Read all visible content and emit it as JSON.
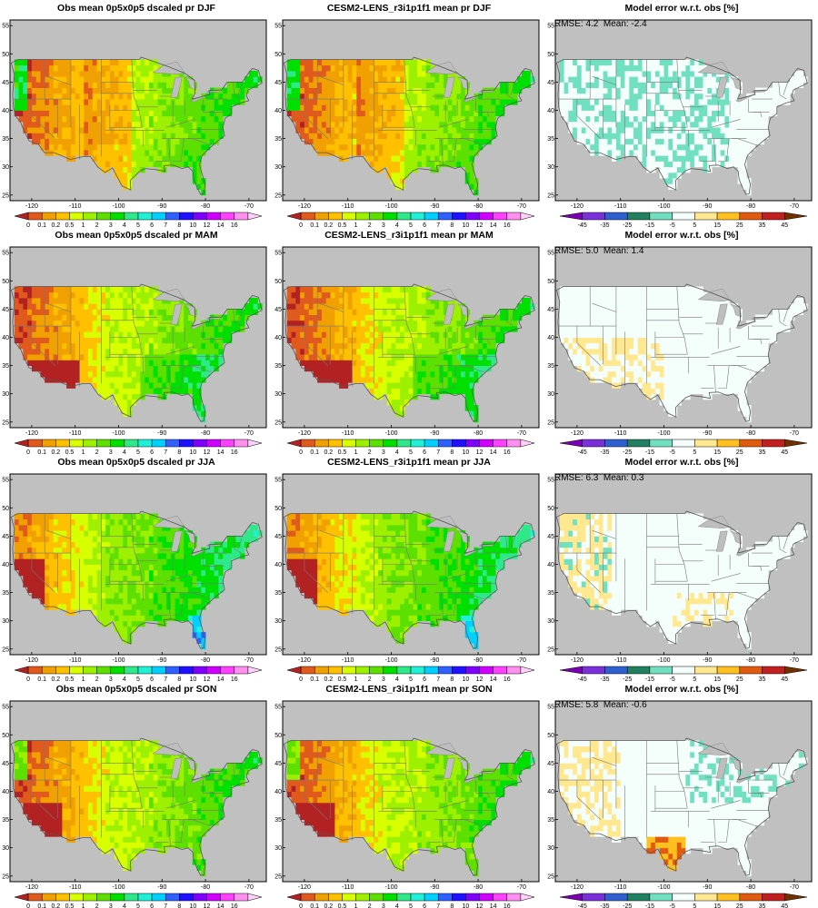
{
  "panels": [
    {
      "title": "Obs mean 0p5x0p5 dscaled pr DJF",
      "kind": "obs",
      "season": "DJF"
    },
    {
      "title": "CESM2-LENS_r3i1p1f1 mean pr DJF",
      "kind": "model",
      "season": "DJF"
    },
    {
      "title": "Model error w.r.t. obs [%]",
      "kind": "error",
      "season": "DJF",
      "stats": "RMSE: 4.2  Mean: -2.4"
    },
    {
      "title": "Obs mean 0p5x0p5 dscaled pr MAM",
      "kind": "obs",
      "season": "MAM"
    },
    {
      "title": "CESM2-LENS_r3i1p1f1 mean pr MAM",
      "kind": "model",
      "season": "MAM"
    },
    {
      "title": "Model error w.r.t. obs [%]",
      "kind": "error",
      "season": "MAM",
      "stats": "RMSE: 5.0  Mean: 1.4"
    },
    {
      "title": "Obs mean 0p5x0p5 dscaled pr JJA",
      "kind": "obs",
      "season": "JJA"
    },
    {
      "title": "CESM2-LENS_r3i1p1f1 mean pr JJA",
      "kind": "model",
      "season": "JJA"
    },
    {
      "title": "Model error w.r.t. obs [%]",
      "kind": "error",
      "season": "JJA",
      "stats": "RMSE: 6.3  Mean: 0.3"
    },
    {
      "title": "Obs mean 0p5x0p5 dscaled pr SON",
      "kind": "obs",
      "season": "SON"
    },
    {
      "title": "CESM2-LENS_r3i1p1f1 mean pr SON",
      "kind": "model",
      "season": "SON"
    },
    {
      "title": "Model error w.r.t. obs [%]",
      "kind": "error",
      "season": "SON",
      "stats": "RMSE: 5.8  Mean: -0.6"
    }
  ],
  "chart_data": {
    "type": "heatmap",
    "map_type": "filled contour maps of contiguous United States",
    "grid": {
      "rows": [
        "DJF",
        "MAM",
        "JJA",
        "SON"
      ],
      "columns": [
        "obs",
        "model",
        "error"
      ]
    },
    "lon_ticks": [
      "-120",
      "-110",
      "-100",
      "-90",
      "-80",
      "-70"
    ],
    "lat_ticks": [
      "25",
      "30",
      "35",
      "40",
      "45",
      "50",
      "55"
    ],
    "lon_range": [
      -125,
      -66
    ],
    "lat_range": [
      24,
      56
    ],
    "precip_levels": [
      "0",
      "0.1",
      "0.2",
      "0.5",
      "1",
      "2",
      "3",
      "4",
      "5",
      "6",
      "7",
      "8",
      "10",
      "12",
      "14",
      "16"
    ],
    "precip_colors": [
      "#b22222",
      "#e05a1e",
      "#f0a000",
      "#ffc000",
      "#d8ff00",
      "#9cf000",
      "#5de000",
      "#00e000",
      "#2ee88a",
      "#20f0d8",
      "#00d0ff",
      "#3060ff",
      "#2010ff",
      "#8000ff",
      "#d000ff",
      "#ff40ff",
      "#ff90f0",
      "#ffd0f8"
    ],
    "error_levels": [
      "-45",
      "-35",
      "-25",
      "-15",
      "-5",
      "5",
      "15",
      "25",
      "35",
      "45"
    ],
    "error_colors": [
      "#7a00b0",
      "#7a30d8",
      "#3060d0",
      "#208060",
      "#70e0c0",
      "#f4fffc",
      "#ffe890",
      "#ffc020",
      "#e05a10",
      "#c02020",
      "#703000"
    ],
    "missing_color": "#bebebe",
    "ocean_color": "#c0c0c0"
  }
}
